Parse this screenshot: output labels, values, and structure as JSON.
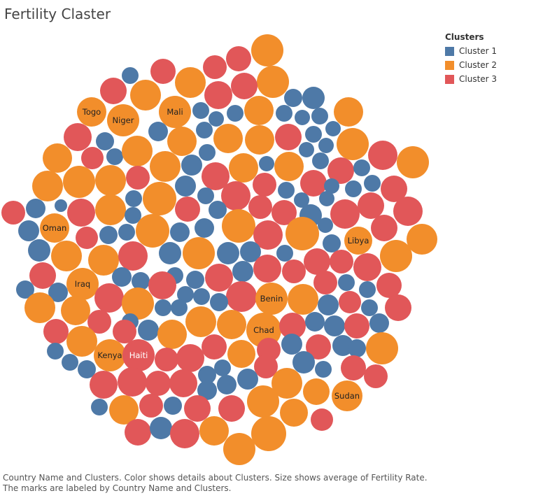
{
  "title": "Fertility Claster",
  "legend": {
    "title": "Clusters",
    "items": [
      {
        "label": "Cluster 1",
        "color": "#4e79a7"
      },
      {
        "label": "Cluster 2",
        "color": "#f28e2b"
      },
      {
        "label": "Cluster 3",
        "color": "#e15759"
      }
    ]
  },
  "caption": "Country Name and Clusters.  Color shows details about Clusters.  Size shows average of Fertility Rate.  The marks are labeled by Country Name and Clusters.",
  "chart_data": {
    "type": "packed-bubble",
    "title": "Fertility Claster",
    "color_field": "Clusters",
    "size_field": "Fertility Rate (average)",
    "label_field": "Country Name",
    "series": [
      {
        "name": "Cluster 1",
        "color": "#4e79a7"
      },
      {
        "name": "Cluster 2",
        "color": "#f28e2b"
      },
      {
        "name": "Cluster 3",
        "color": "#e15759"
      }
    ],
    "labeled_marks": [
      {
        "label": "Togo",
        "cluster": "Cluster 2"
      },
      {
        "label": "Niger",
        "cluster": "Cluster 2"
      },
      {
        "label": "Mali",
        "cluster": "Cluster 2"
      },
      {
        "label": "Oman",
        "cluster": "Cluster 2"
      },
      {
        "label": "Libya",
        "cluster": "Cluster 2"
      },
      {
        "label": "Iraq",
        "cluster": "Cluster 2"
      },
      {
        "label": "Benin",
        "cluster": "Cluster 2"
      },
      {
        "label": "Chad",
        "cluster": "Cluster 2"
      },
      {
        "label": "Kenya",
        "cluster": "Cluster 2"
      },
      {
        "label": "Haiti",
        "cluster": "Cluster 3"
      },
      {
        "label": "Sudan",
        "cluster": "Cluster 2"
      }
    ]
  }
}
